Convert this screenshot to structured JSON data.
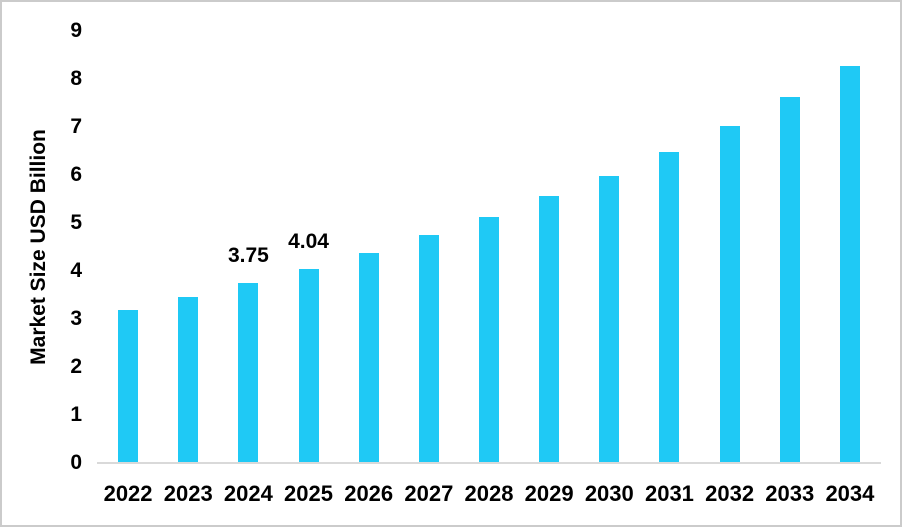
{
  "chart_data": {
    "type": "bar",
    "title": "",
    "xlabel": "",
    "ylabel": "Market Size USD Billion",
    "categories": [
      "2022",
      "2023",
      "2024",
      "2025",
      "2026",
      "2027",
      "2028",
      "2029",
      "2030",
      "2031",
      "2032",
      "2033",
      "2034"
    ],
    "values": [
      3.19,
      3.46,
      3.75,
      4.04,
      4.38,
      4.75,
      5.12,
      5.56,
      5.98,
      6.48,
      7.02,
      7.62,
      8.27
    ],
    "bar_labels": [
      "",
      "",
      "3.75",
      "4.04",
      "",
      "",
      "",
      "",
      "",
      "",
      "",
      "",
      ""
    ],
    "yticks": [
      0,
      1,
      2,
      3,
      4,
      5,
      6,
      7,
      8,
      9
    ],
    "ylim": [
      0,
      9
    ],
    "grid": false,
    "legend": "none",
    "colors": {
      "bar": "#1FC9F5",
      "axis_line": "#D9D9D9",
      "text": "#000000",
      "background": "#FFFFFF"
    }
  }
}
